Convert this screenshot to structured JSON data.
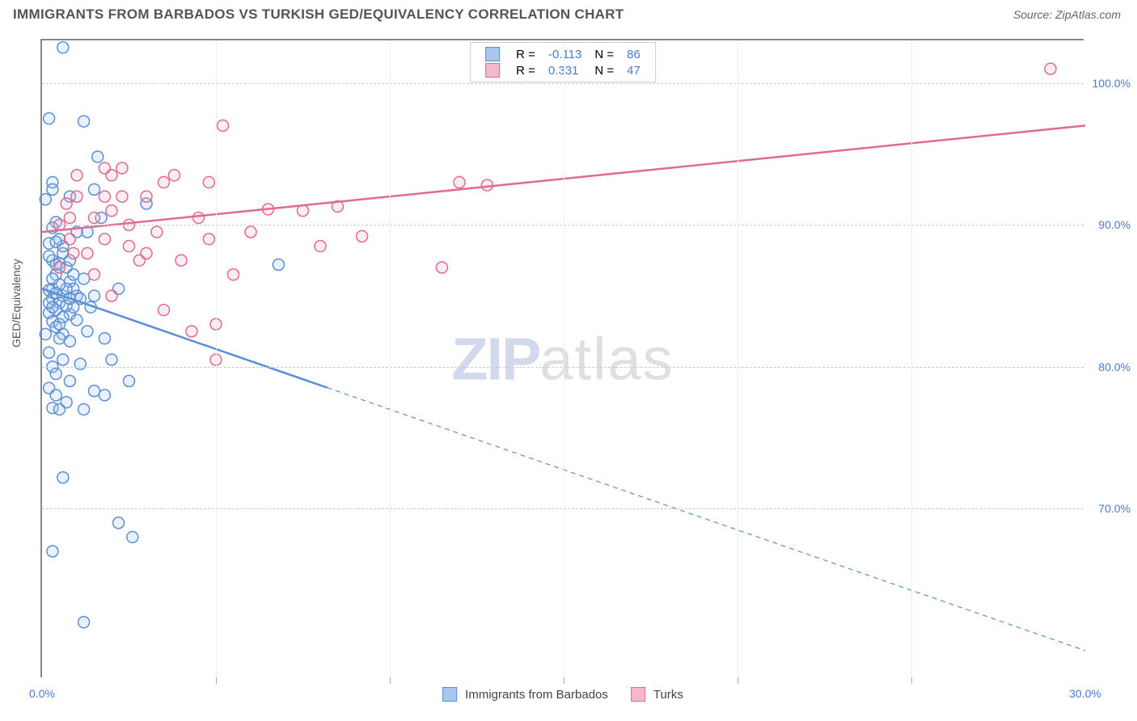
{
  "title": "IMMIGRANTS FROM BARBADOS VS TURKISH GED/EQUIVALENCY CORRELATION CHART",
  "source": "Source: ZipAtlas.com",
  "ylabel": "GED/Equivalency",
  "watermark_bold": "ZIP",
  "watermark_light": "atlas",
  "chart": {
    "type": "scatter",
    "xlim": [
      0,
      30
    ],
    "ylim": [
      58,
      103
    ],
    "xtick_labels": {
      "0": "0.0%",
      "30": "30.0%"
    },
    "xtick_minor": [
      5,
      10,
      15,
      20,
      25
    ],
    "ytick_labels": {
      "70": "70.0%",
      "80": "80.0%",
      "90": "90.0%",
      "100": "100.0%"
    },
    "grid_color": "#cccccc",
    "background_color": "#ffffff",
    "marker_radius": 7,
    "marker_stroke_width": 1.5,
    "marker_fill_opacity": 0.25,
    "series": [
      {
        "name": "Immigrants from Barbados",
        "color_stroke": "#5b8fd6",
        "color_fill": "#a9c6ec",
        "R": "-0.113",
        "N": "86",
        "trend": {
          "x1": 0,
          "y1": 85.5,
          "x2": 30,
          "y2": 60.0,
          "solid_until_x": 8.2,
          "line_width": 2.5
        },
        "points": [
          [
            0.6,
            102.5
          ],
          [
            0.2,
            97.5
          ],
          [
            1.2,
            97.3
          ],
          [
            1.6,
            94.8
          ],
          [
            0.3,
            93.0
          ],
          [
            1.5,
            92.5
          ],
          [
            0.8,
            92.0
          ],
          [
            0.1,
            91.8
          ],
          [
            0.4,
            90.2
          ],
          [
            1.3,
            89.5
          ],
          [
            0.2,
            88.7
          ],
          [
            0.6,
            88.0
          ],
          [
            0.3,
            87.5
          ],
          [
            0.5,
            87.3
          ],
          [
            0.4,
            87.2
          ],
          [
            0.7,
            87.0
          ],
          [
            1.2,
            86.2
          ],
          [
            0.8,
            86.0
          ],
          [
            0.3,
            85.5
          ],
          [
            0.9,
            85.5
          ],
          [
            0.2,
            85.4
          ],
          [
            0.6,
            85.0
          ],
          [
            1.0,
            85.0
          ],
          [
            0.3,
            84.8
          ],
          [
            0.5,
            84.5
          ],
          [
            0.7,
            84.3
          ],
          [
            1.4,
            84.2
          ],
          [
            0.4,
            84.0
          ],
          [
            0.2,
            83.8
          ],
          [
            0.8,
            83.7
          ],
          [
            0.6,
            83.5
          ],
          [
            1.0,
            83.3
          ],
          [
            0.3,
            83.2
          ],
          [
            0.4,
            82.8
          ],
          [
            1.3,
            82.5
          ],
          [
            0.1,
            82.3
          ],
          [
            0.6,
            82.3
          ],
          [
            0.5,
            82.0
          ],
          [
            0.8,
            81.8
          ],
          [
            2.0,
            80.5
          ],
          [
            1.1,
            80.2
          ],
          [
            0.3,
            80.0
          ],
          [
            0.8,
            79.0
          ],
          [
            2.5,
            79.0
          ],
          [
            0.2,
            78.5
          ],
          [
            1.5,
            78.3
          ],
          [
            0.4,
            78.0
          ],
          [
            0.7,
            77.5
          ],
          [
            0.3,
            77.1
          ],
          [
            1.2,
            77.0
          ],
          [
            0.5,
            77.0
          ],
          [
            6.8,
            87.2
          ],
          [
            0.6,
            72.2
          ],
          [
            2.2,
            69.0
          ],
          [
            2.6,
            68.0
          ],
          [
            0.3,
            67.0
          ],
          [
            1.2,
            62.0
          ],
          [
            0.4,
            86.5
          ],
          [
            0.9,
            86.5
          ],
          [
            1.7,
            90.5
          ],
          [
            0.3,
            92.5
          ],
          [
            1.0,
            89.5
          ],
          [
            2.2,
            85.5
          ],
          [
            3.0,
            91.5
          ],
          [
            0.4,
            79.5
          ],
          [
            1.8,
            82.0
          ],
          [
            0.2,
            81.0
          ],
          [
            0.6,
            88.5
          ],
          [
            0.5,
            89.0
          ],
          [
            0.8,
            87.5
          ],
          [
            1.8,
            78.0
          ],
          [
            0.3,
            89.8
          ],
          [
            0.7,
            85.5
          ],
          [
            0.9,
            84.2
          ],
          [
            1.1,
            84.8
          ],
          [
            0.5,
            85.8
          ],
          [
            0.3,
            86.2
          ],
          [
            0.4,
            85.2
          ],
          [
            0.2,
            84.5
          ],
          [
            0.6,
            80.5
          ],
          [
            1.5,
            85.0
          ],
          [
            0.4,
            88.8
          ],
          [
            0.2,
            87.8
          ],
          [
            0.8,
            84.8
          ],
          [
            0.5,
            83.0
          ],
          [
            0.3,
            84.2
          ]
        ]
      },
      {
        "name": "Turks",
        "color_stroke": "#e06b8f",
        "color_fill": "#f5b8cb",
        "R": "0.331",
        "N": "47",
        "trend": {
          "x1": 0,
          "y1": 89.5,
          "x2": 30,
          "y2": 97.0,
          "solid_until_x": 30,
          "line_width": 2.5
        },
        "points": [
          [
            29.0,
            101.0
          ],
          [
            5.2,
            97.0
          ],
          [
            2.3,
            94.0
          ],
          [
            3.8,
            93.5
          ],
          [
            3.5,
            93.0
          ],
          [
            4.8,
            93.0
          ],
          [
            12.0,
            93.0
          ],
          [
            12.8,
            92.8
          ],
          [
            1.0,
            92.0
          ],
          [
            1.8,
            92.0
          ],
          [
            2.3,
            92.0
          ],
          [
            3.0,
            92.0
          ],
          [
            0.7,
            91.5
          ],
          [
            8.5,
            91.3
          ],
          [
            6.5,
            91.1
          ],
          [
            7.5,
            91.0
          ],
          [
            0.8,
            90.5
          ],
          [
            1.5,
            90.5
          ],
          [
            4.5,
            90.5
          ],
          [
            2.5,
            90.0
          ],
          [
            3.3,
            89.5
          ],
          [
            9.2,
            89.2
          ],
          [
            4.8,
            89.0
          ],
          [
            8.0,
            88.5
          ],
          [
            0.9,
            88.0
          ],
          [
            2.8,
            87.5
          ],
          [
            11.5,
            87.0
          ],
          [
            5.5,
            86.5
          ],
          [
            2.0,
            85.0
          ],
          [
            3.5,
            84.0
          ],
          [
            5.0,
            83.0
          ],
          [
            4.3,
            82.5
          ],
          [
            5.0,
            80.5
          ],
          [
            1.0,
            93.5
          ],
          [
            2.0,
            93.5
          ],
          [
            1.3,
            88.0
          ],
          [
            2.5,
            88.5
          ],
          [
            3.0,
            88.0
          ],
          [
            1.5,
            86.5
          ],
          [
            0.5,
            90.0
          ],
          [
            1.8,
            89.0
          ],
          [
            0.8,
            89.0
          ],
          [
            2.0,
            91.0
          ],
          [
            6.0,
            89.5
          ],
          [
            4.0,
            87.5
          ],
          [
            0.5,
            87.0
          ],
          [
            1.8,
            94.0
          ]
        ]
      }
    ],
    "legend_bottom": [
      {
        "label": "Immigrants from Barbados",
        "fill": "#a9c6ec",
        "stroke": "#5b8fd6"
      },
      {
        "label": "Turks",
        "fill": "#f5b8cb",
        "stroke": "#e06b8f"
      }
    ]
  }
}
